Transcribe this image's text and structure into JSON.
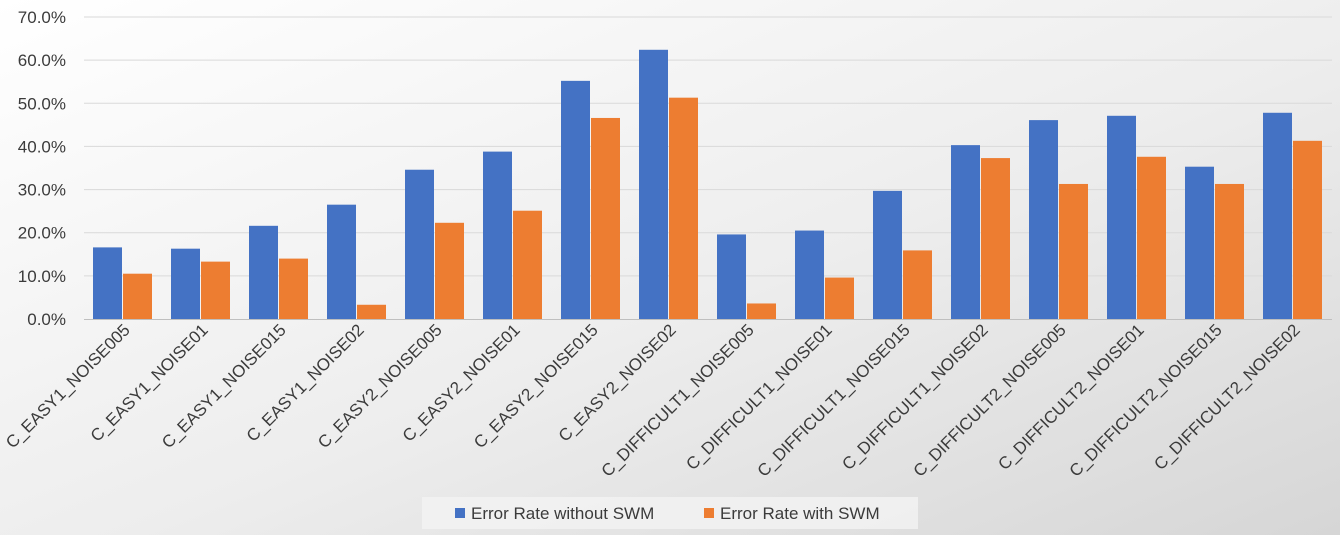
{
  "chart_data": {
    "type": "bar",
    "categories": [
      "C_EASY1_NOISE005",
      "C_EASY1_NOISE01",
      "C_EASY1_NOISE015",
      "C_EASY1_NOISE02",
      "C_EASY2_NOISE005",
      "C_EASY2_NOISE01",
      "C_EASY2_NOISE015",
      "C_EASY2_NOISE02",
      "C_DIFFICULT1_NOISE005",
      "C_DIFFICULT1_NOISE01",
      "C_DIFFICULT1_NOISE015",
      "C_DIFFICULT1_NOISE02",
      "C_DIFFICULT2_NOISE005",
      "C_DIFFICULT2_NOISE01",
      "C_DIFFICULT2_NOISE015",
      "C_DIFFICULT2_NOISE02"
    ],
    "series": [
      {
        "name": "Error Rate without SWM",
        "color": "#4472C4",
        "values": [
          16.6,
          16.3,
          21.6,
          26.5,
          34.6,
          38.8,
          55.2,
          62.4,
          19.6,
          20.5,
          29.7,
          40.3,
          46.1,
          47.1,
          35.3,
          47.8
        ]
      },
      {
        "name": "Error Rate with SWM",
        "color": "#ED7D31",
        "values": [
          10.5,
          13.3,
          14.0,
          3.3,
          22.3,
          25.1,
          46.6,
          51.3,
          3.6,
          9.6,
          15.9,
          37.3,
          31.3,
          37.6,
          31.3,
          41.3
        ]
      }
    ],
    "title": "",
    "xlabel": "",
    "ylabel": "",
    "ylim": [
      0,
      70
    ],
    "yticks": [
      "0.0%",
      "10.0%",
      "20.0%",
      "30.0%",
      "40.0%",
      "50.0%",
      "60.0%",
      "70.0%"
    ],
    "grid": true,
    "legend_position": "bottom",
    "gridline_color": "#d9d9d9"
  }
}
